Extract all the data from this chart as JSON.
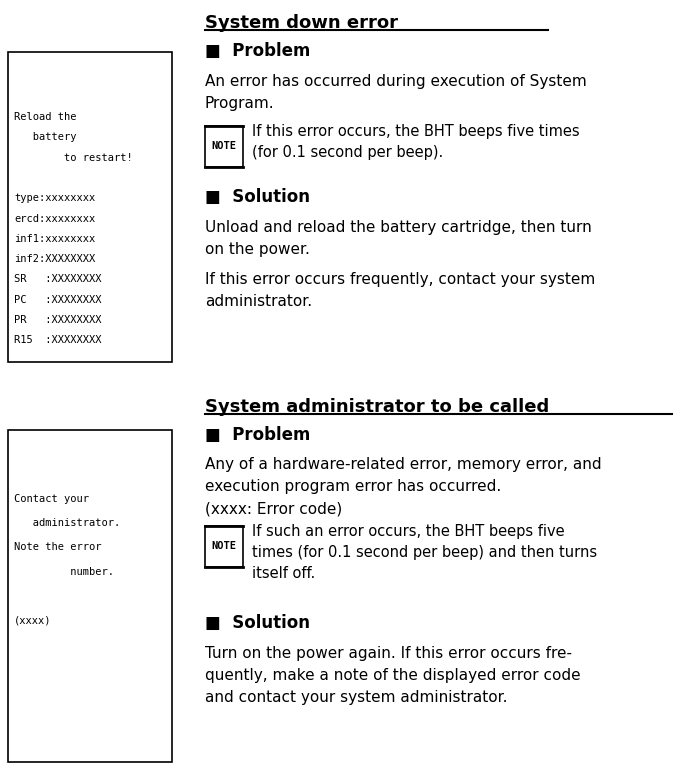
{
  "bg_color": "#ffffff",
  "title1": "System down error",
  "title2": "System administrator to be called",
  "section1": {
    "problem_header": "■  Problem",
    "problem_text1": "An error has occurred during execution of System\nProgram.",
    "note1": "If this error occurs, the BHT beeps five times\n(for 0.1 second per beep).",
    "solution_header": "■  Solution",
    "solution_text1": "Unload and reload the battery cartridge, then turn\non the power.",
    "solution_text2": "If this error occurs frequently, contact your system\nadministrator.",
    "box_lines": [
      "Reload the",
      "   battery",
      "        to restart!",
      "",
      "type:xxxxxxxx",
      "ercd:xxxxxxxx",
      "inf1:xxxxxxxx",
      "inf2:XXXXXXXX",
      "SR   :XXXXXXXX",
      "PC   :XXXXXXXX",
      "PR   :XXXXXXXX",
      "R15  :XXXXXXXX"
    ]
  },
  "section2": {
    "problem_header": "■  Problem",
    "problem_text1": "Any of a hardware-related error, memory error, and\nexecution program error has occurred.",
    "problem_text2": "(xxxx: Error code)",
    "note2": "If such an error occurs, the BHT beeps five\ntimes (for 0.1 second per beep) and then turns\nitself off.",
    "solution_header": "■  Solution",
    "solution_text1": "Turn on the power again. If this error occurs fre-\nquently, make a note of the displayed error code\nand contact your system administrator.",
    "box_lines": [
      "Contact your",
      "   administrator.",
      "Note the error",
      "         number.",
      "",
      "(xxxx)"
    ]
  },
  "note_label": "NOTE",
  "font_size_title": 13,
  "font_size_header": 12,
  "font_size_body": 11,
  "font_size_mono": 7.5,
  "font_size_note": 10.5
}
